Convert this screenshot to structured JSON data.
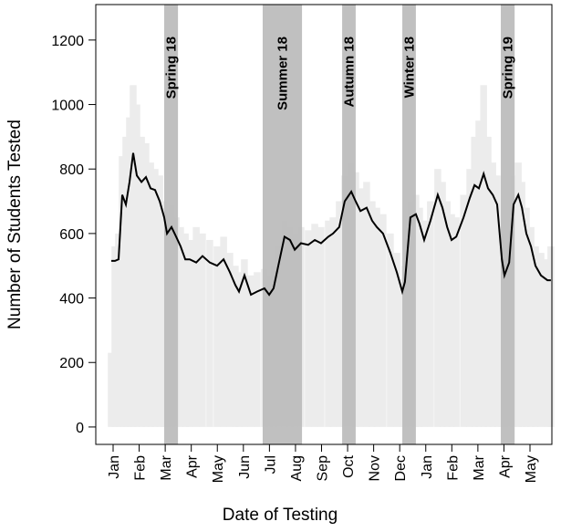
{
  "chart_data": {
    "type": "line",
    "x_label": "Date of Testing",
    "y_label": "Number of Students Tested",
    "xlim": [
      -0.665,
      16.84
    ],
    "ylim": [
      -54,
      1310
    ],
    "yticks": [
      0,
      200,
      400,
      600,
      800,
      1000,
      1200
    ],
    "xticks": [
      {
        "value": 0,
        "label": "Jan"
      },
      {
        "value": 1,
        "label": "Feb"
      },
      {
        "value": 2,
        "label": "Mar"
      },
      {
        "value": 3,
        "label": "Apr"
      },
      {
        "value": 4,
        "label": "May"
      },
      {
        "value": 5,
        "label": "Jun"
      },
      {
        "value": 6,
        "label": "Jul"
      },
      {
        "value": 7,
        "label": "Aug"
      },
      {
        "value": 8,
        "label": "Sep"
      },
      {
        "value": 9,
        "label": "Oct"
      },
      {
        "value": 10,
        "label": "Nov"
      },
      {
        "value": 11,
        "label": "Dec"
      },
      {
        "value": 12,
        "label": "Jan"
      },
      {
        "value": 13,
        "label": "Feb"
      },
      {
        "value": 14,
        "label": "Mar"
      },
      {
        "value": 15,
        "label": "Apr"
      },
      {
        "value": 16,
        "label": "May"
      }
    ],
    "spans": [
      {
        "label": "Spring 18",
        "start": 1.96,
        "end": 2.49
      },
      {
        "label": "Summer 18",
        "start": 5.74,
        "end": 7.25
      },
      {
        "label": "Autumn 18",
        "start": 8.79,
        "end": 9.31
      },
      {
        "label": "Winter 18",
        "start": 11.1,
        "end": 11.62
      },
      {
        "label": "Spring 19",
        "start": 14.88,
        "end": 15.41
      }
    ],
    "span_color": "#bdbdbd",
    "bars": {
      "color": "#ececec",
      "x": [
        -0.07,
        0.07,
        0.21,
        0.35,
        0.49,
        0.63,
        0.77,
        0.91,
        1.09,
        1.26,
        1.44,
        1.61,
        1.79,
        1.96,
        2.07,
        2.24,
        2.42,
        2.59,
        2.77,
        2.94,
        3.19,
        3.43,
        3.71,
        3.99,
        4.24,
        4.48,
        4.69,
        4.83,
        5.04,
        5.29,
        5.53,
        5.81,
        5.99,
        6.16,
        6.34,
        6.58,
        6.79,
        6.97,
        7.21,
        7.49,
        7.74,
        7.98,
        8.26,
        8.44,
        8.68,
        8.89,
        9.14,
        9.31,
        9.49,
        9.73,
        9.94,
        10.12,
        10.36,
        10.64,
        10.89,
        11.1,
        11.2,
        11.41,
        11.62,
        11.76,
        11.94,
        12.18,
        12.46,
        12.64,
        12.82,
        12.99,
        13.17,
        13.45,
        13.69,
        13.87,
        14.04,
        14.22,
        14.39,
        14.57,
        14.74,
        14.92,
        15.02,
        15.2,
        15.37,
        15.55,
        15.69,
        15.86,
        16.04,
        16.21,
        16.42,
        16.67,
        16.8
      ],
      "values": [
        230,
        560,
        600,
        840,
        900,
        960,
        1060,
        1000,
        900,
        880,
        820,
        800,
        780,
        700,
        660,
        690,
        650,
        620,
        600,
        580,
        620,
        600,
        580,
        560,
        590,
        540,
        500,
        480,
        520,
        470,
        480,
        490,
        470,
        500,
        560,
        640,
        620,
        600,
        620,
        610,
        630,
        620,
        640,
        650,
        700,
        780,
        820,
        790,
        740,
        760,
        700,
        680,
        660,
        600,
        540,
        460,
        500,
        700,
        720,
        680,
        640,
        700,
        800,
        760,
        700,
        660,
        650,
        720,
        800,
        900,
        950,
        1060,
        900,
        820,
        780,
        600,
        520,
        560,
        780,
        820,
        760,
        680,
        620,
        560,
        540,
        520,
        560
      ]
    },
    "line": {
      "color": "#000000",
      "x": [
        -0.07,
        0.07,
        0.21,
        0.35,
        0.49,
        0.63,
        0.77,
        0.91,
        1.09,
        1.26,
        1.44,
        1.61,
        1.79,
        1.96,
        2.07,
        2.24,
        2.42,
        2.59,
        2.77,
        2.94,
        3.19,
        3.43,
        3.71,
        3.99,
        4.24,
        4.48,
        4.69,
        4.83,
        5.04,
        5.29,
        5.53,
        5.81,
        5.99,
        6.16,
        6.34,
        6.58,
        6.79,
        6.97,
        7.21,
        7.49,
        7.74,
        7.98,
        8.26,
        8.44,
        8.68,
        8.89,
        9.14,
        9.31,
        9.49,
        9.73,
        9.94,
        10.12,
        10.36,
        10.64,
        10.89,
        11.1,
        11.2,
        11.41,
        11.62,
        11.76,
        11.94,
        12.18,
        12.46,
        12.64,
        12.82,
        12.99,
        13.17,
        13.45,
        13.69,
        13.87,
        14.04,
        14.22,
        14.39,
        14.57,
        14.74,
        14.92,
        15.02,
        15.2,
        15.37,
        15.55,
        15.69,
        15.86,
        16.04,
        16.21,
        16.42,
        16.67,
        16.8
      ],
      "values": [
        515,
        515,
        520,
        720,
        690,
        760,
        850,
        780,
        760,
        775,
        740,
        735,
        700,
        650,
        600,
        620,
        590,
        560,
        520,
        520,
        510,
        530,
        510,
        500,
        520,
        480,
        440,
        420,
        470,
        410,
        420,
        430,
        410,
        430,
        500,
        590,
        580,
        550,
        570,
        565,
        580,
        570,
        590,
        600,
        620,
        700,
        730,
        700,
        670,
        680,
        640,
        620,
        600,
        540,
        480,
        420,
        450,
        650,
        660,
        630,
        580,
        640,
        720,
        680,
        620,
        580,
        590,
        650,
        710,
        750,
        740,
        785,
        740,
        720,
        690,
        520,
        470,
        510,
        690,
        720,
        680,
        600,
        560,
        500,
        470,
        455,
        455
      ]
    }
  }
}
